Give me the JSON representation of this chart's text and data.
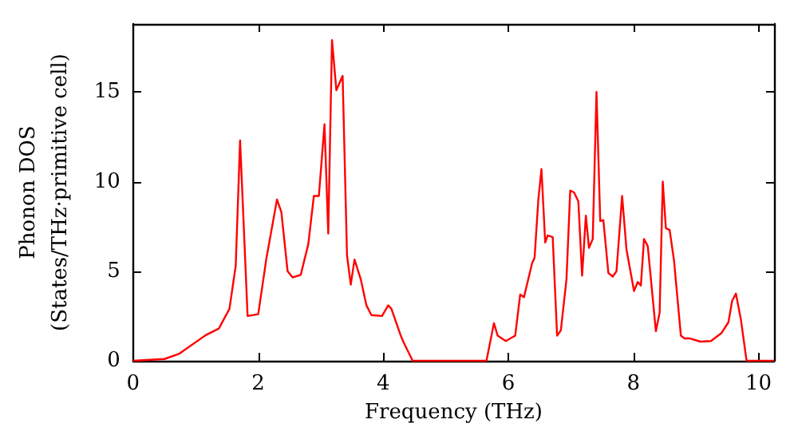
{
  "chart_data": {
    "type": "line",
    "xlabel": "Frequency (THz)",
    "ylabel": "Phonon DOS\n(States/THz·primitive cell)",
    "xlim": [
      0,
      10.25
    ],
    "xticks": [
      0,
      2,
      4,
      6,
      8,
      10
    ],
    "ylim": [
      0,
      18.8
    ],
    "yticks": [
      0,
      5,
      10,
      15
    ],
    "grid": false,
    "marker": "none",
    "line_style": "solid",
    "series": [
      {
        "color": "#ff0000",
        "x": [
          0,
          0.5,
          0.73,
          1.16,
          1.37,
          1.54,
          1.64,
          1.71,
          1.83,
          2.0,
          2.13,
          2.3,
          2.37,
          2.47,
          2.55,
          2.68,
          2.8,
          2.89,
          2.97,
          3.06,
          3.12,
          3.18,
          3.25,
          3.35,
          3.42,
          3.48,
          3.54,
          3.64,
          3.73,
          3.81,
          3.98,
          4.08,
          4.13,
          4.28,
          4.32,
          4.47,
          5.65,
          5.77,
          5.83,
          5.96,
          6.11,
          6.19,
          6.25,
          6.38,
          6.42,
          6.48,
          6.53,
          6.59,
          6.63,
          6.71,
          6.78,
          6.84,
          6.93,
          6.99,
          7.05,
          7.12,
          7.18,
          7.24,
          7.29,
          7.35,
          7.41,
          7.47,
          7.52,
          7.6,
          7.67,
          7.73,
          7.82,
          7.89,
          8.01,
          8.07,
          8.12,
          8.17,
          8.23,
          8.36,
          8.42,
          8.47,
          8.52,
          8.58,
          8.65,
          8.76,
          8.82,
          8.9,
          9.07,
          9.24,
          9.41,
          9.52,
          9.58,
          9.64,
          9.72,
          9.81,
          10.25
        ],
        "values": [
          0,
          0.1,
          0.38,
          1.43,
          1.8,
          2.9,
          5.3,
          12.3,
          2.5,
          2.6,
          5.7,
          9.0,
          8.3,
          5.0,
          4.65,
          4.8,
          6.5,
          9.2,
          9.2,
          13.2,
          7.1,
          17.9,
          15.1,
          15.9,
          5.9,
          4.25,
          5.65,
          4.55,
          3.1,
          2.55,
          2.5,
          3.1,
          2.9,
          1.4,
          1.07,
          0,
          0,
          2.1,
          1.4,
          1.1,
          1.4,
          3.7,
          3.55,
          5.45,
          5.75,
          9.0,
          10.7,
          6.6,
          7.0,
          6.9,
          1.4,
          1.7,
          4.55,
          9.5,
          9.4,
          8.9,
          4.75,
          8.1,
          6.3,
          6.8,
          15.0,
          7.8,
          7.85,
          4.9,
          4.7,
          5.0,
          9.2,
          6.2,
          3.9,
          4.4,
          4.2,
          6.8,
          6.4,
          1.65,
          2.7,
          10.0,
          7.4,
          7.3,
          5.6,
          1.4,
          1.25,
          1.25,
          1.07,
          1.1,
          1.55,
          2.15,
          3.35,
          3.75,
          2.3,
          0,
          0
        ]
      }
    ]
  }
}
